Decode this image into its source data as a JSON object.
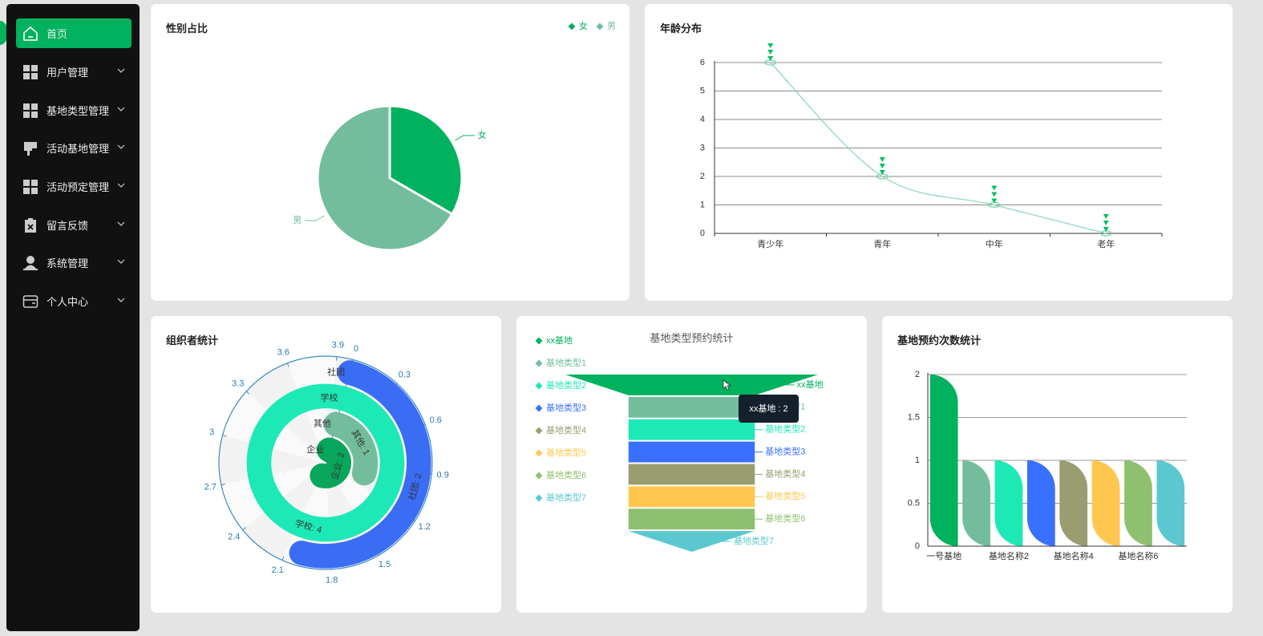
{
  "sidebar": {
    "menu": [
      "首页",
      "用户管理",
      "基地类型管理",
      "活动基地管理",
      "活动预定管理",
      "留言反馈",
      "系统管理",
      "个人中心"
    ]
  },
  "chart_data": [
    {
      "type": "pie",
      "title": "性别占比",
      "categories": [
        "女",
        "男"
      ],
      "values": [
        3,
        6
      ],
      "colors": [
        "#00b15e",
        "#73bd9c"
      ],
      "legend": "top-right"
    },
    {
      "type": "line",
      "title": "年龄分布",
      "categories": [
        "青少年",
        "青年",
        "中年",
        "老年"
      ],
      "values": [
        6,
        2,
        1,
        0
      ],
      "color": "#8fd9b6",
      "marker_color": "#00c25e",
      "ylim": [
        0,
        6
      ],
      "yticks": [
        0,
        1,
        2,
        3,
        4,
        5,
        6
      ],
      "grid": true,
      "smooth": true
    },
    {
      "type": "polar",
      "title": "组织者统计",
      "categories": [
        "企业",
        "其他",
        "学校",
        "社团"
      ],
      "values": [
        2,
        1,
        4,
        2
      ],
      "value_labels": [
        "企业: 2",
        "其他: 1",
        "学校: 4",
        "社团: 2"
      ],
      "colors": [
        "#07a65b",
        "#73bd9c",
        "#1de9b6",
        "#3a6cf4"
      ],
      "xlim": [
        0,
        4
      ],
      "xticks": [
        0,
        0.3,
        0.6,
        0.9,
        1.2,
        1.5,
        1.8,
        2.1,
        2.4,
        2.7,
        3,
        3.3,
        3.6,
        3.9
      ]
    },
    {
      "type": "funnel",
      "title": "基地类型预约统计",
      "categories": [
        "xx基地",
        "基地类型1",
        "基地类型2",
        "基地类型3",
        "基地类型4",
        "基地类型5",
        "基地类型6",
        "基地类型7"
      ],
      "values": [
        2,
        1,
        1,
        1,
        1,
        1,
        1,
        1
      ],
      "colors": [
        "#00b15e",
        "#73bd9c",
        "#1de9b6",
        "#3a70ff",
        "#9a9d6f",
        "#ffc74f",
        "#8fc06f",
        "#5bc8d0"
      ],
      "legend": "left",
      "tooltip": "xx基地 : 2"
    },
    {
      "type": "bar",
      "title": "基地预约次数统计",
      "categories": [
        "一号基地",
        null,
        "基地名称2",
        null,
        "基地名称4",
        null,
        "基地名称6",
        null
      ],
      "values": [
        2,
        1,
        1,
        1,
        1,
        1,
        1,
        1
      ],
      "colors": [
        "#00b15e",
        "#73bd9c",
        "#1de9b6",
        "#3a70ff",
        "#9a9d6f",
        "#ffc74f",
        "#8fc06f",
        "#5bc8d0"
      ],
      "ylim": [
        0,
        2
      ],
      "yticks": [
        0,
        0.5,
        1,
        1.5,
        2
      ],
      "grid": true
    }
  ]
}
